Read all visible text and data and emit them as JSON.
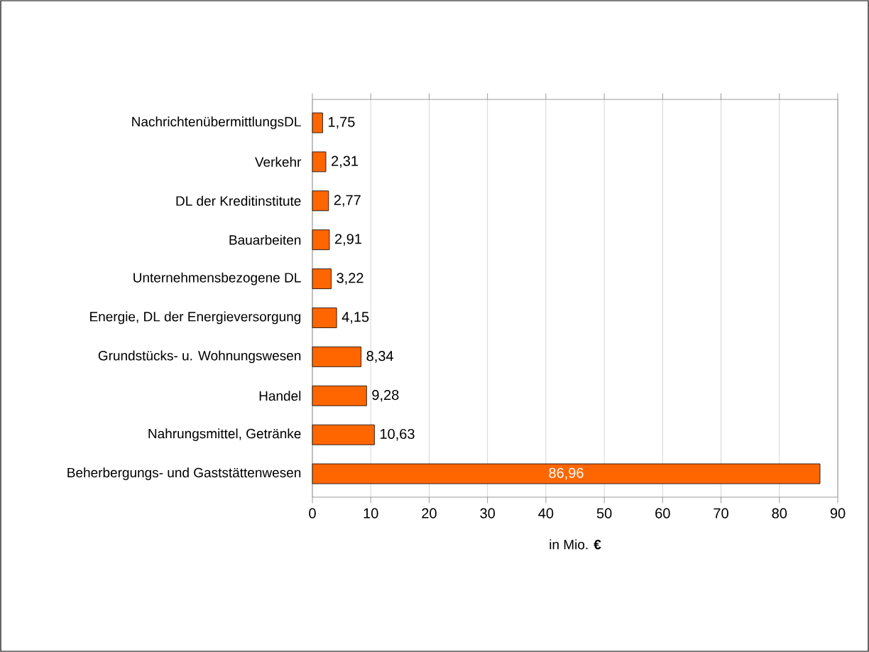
{
  "chart_data": {
    "type": "bar",
    "orientation": "horizontal",
    "xlabel": "in Mio. **€**",
    "categories": [
      "NachrichtenübermittlungsDL",
      "Verkehr",
      "DL der Kreditinstitute",
      "Bauarbeiten",
      "Unternehmensbezogene DL",
      "Energie, DL der Energieversorgung",
      "Grundstücks- u. Wohnungswesen",
      "Handel",
      "Nahrungsmittel, Getränke",
      "Beherbergungs- und Gaststättenwesen"
    ],
    "values": [
      1.75,
      2.31,
      2.77,
      2.91,
      3.22,
      4.15,
      8.34,
      9.28,
      10.63,
      86.96
    ],
    "value_labels": [
      "1,75",
      "2,31",
      "2,77",
      "2,91",
      "3,22",
      "4,15",
      "8,34",
      "9,28",
      "10,63",
      "86,96"
    ],
    "color": "#ff6600",
    "xlim": [
      0,
      90
    ],
    "xticks": [
      0,
      10,
      20,
      30,
      40,
      50,
      60,
      70,
      80,
      90
    ],
    "grid": "x"
  }
}
